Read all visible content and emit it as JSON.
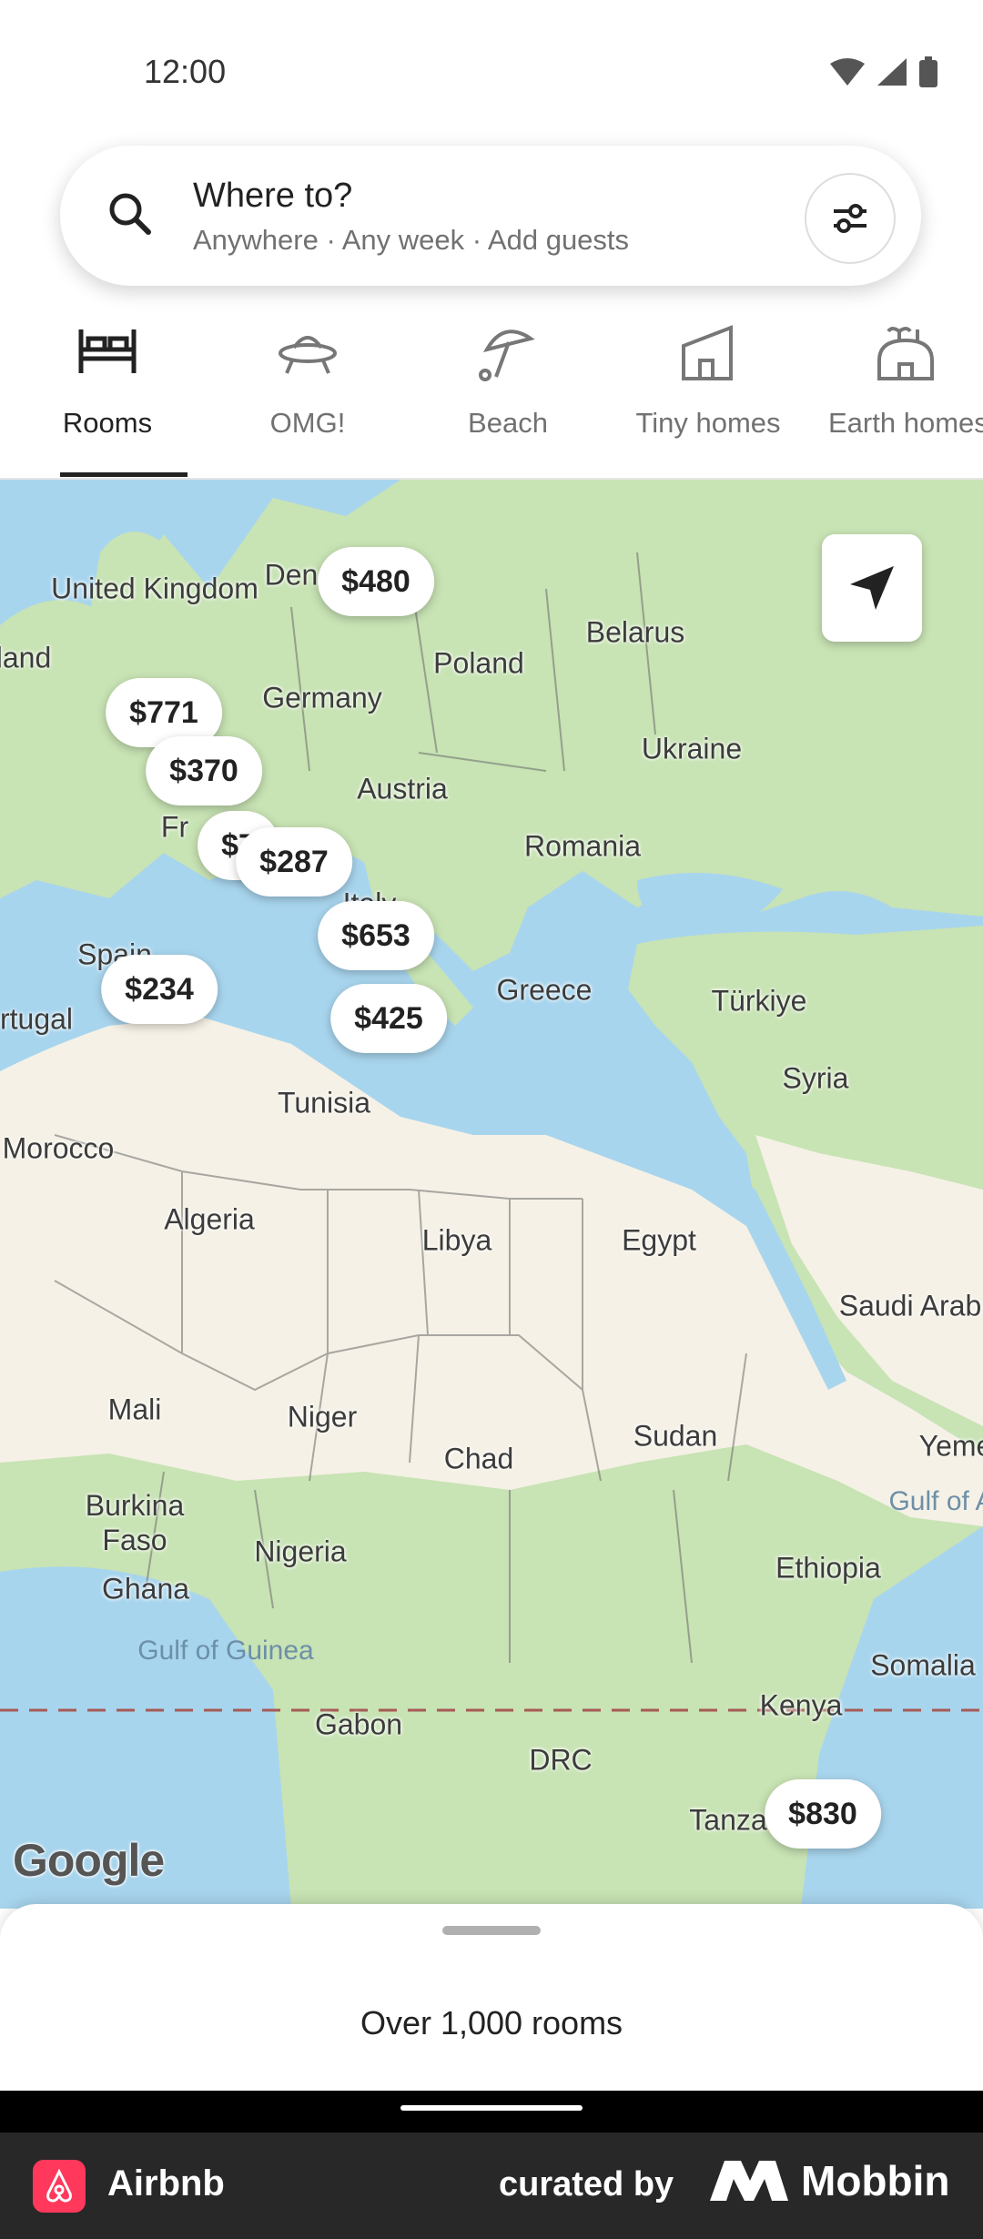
{
  "status_bar": {
    "time": "12:00"
  },
  "search": {
    "title": "Where to?",
    "subtitle": "Anywhere · Any week · Add guests"
  },
  "categories": [
    {
      "label": "Rooms",
      "icon": "bed-icon",
      "active": true
    },
    {
      "label": "OMG!",
      "icon": "ufo-icon",
      "active": false
    },
    {
      "label": "Beach",
      "icon": "umbrella-icon",
      "active": false
    },
    {
      "label": "Tiny homes",
      "icon": "tiny-home-icon",
      "active": false
    },
    {
      "label": "Earth homes",
      "icon": "earth-home-icon",
      "active": false
    }
  ],
  "map": {
    "labels": [
      "United Kingdom",
      "Den",
      "Belarus",
      "Poland",
      "land",
      "Germany",
      "Ukraine",
      "Austria",
      "Fr",
      "Romania",
      "Italy",
      "Spain",
      "Greece",
      "Türkiye",
      "rtugal",
      "Syria",
      "Tunisia",
      "Morocco",
      "Algeria",
      "Libya",
      "Egypt",
      "Saudi Arab",
      "Mali",
      "Niger",
      "Chad",
      "Sudan",
      "Yeme",
      "Gulf of A",
      "Burkina Faso",
      "Nigeria",
      "Ethiopia",
      "Ghana",
      "Gulf of Guinea",
      "Somalia",
      "Kenya",
      "Gabon",
      "DRC",
      "Tanza"
    ],
    "prices": [
      "$480",
      "$771",
      "$370",
      "$7",
      "$287",
      "$653",
      "$234",
      "$425",
      "$830"
    ],
    "attribution": "Google"
  },
  "sheet": {
    "label": "Over 1,000 rooms"
  },
  "footer": {
    "app_name": "Airbnb",
    "curated": "curated by",
    "brand": "Mobbin"
  },
  "colors": {
    "brand": "#ff385c",
    "land": "#c8e3b4",
    "desert": "#f5f1e6",
    "water": "#a8d5ee"
  }
}
